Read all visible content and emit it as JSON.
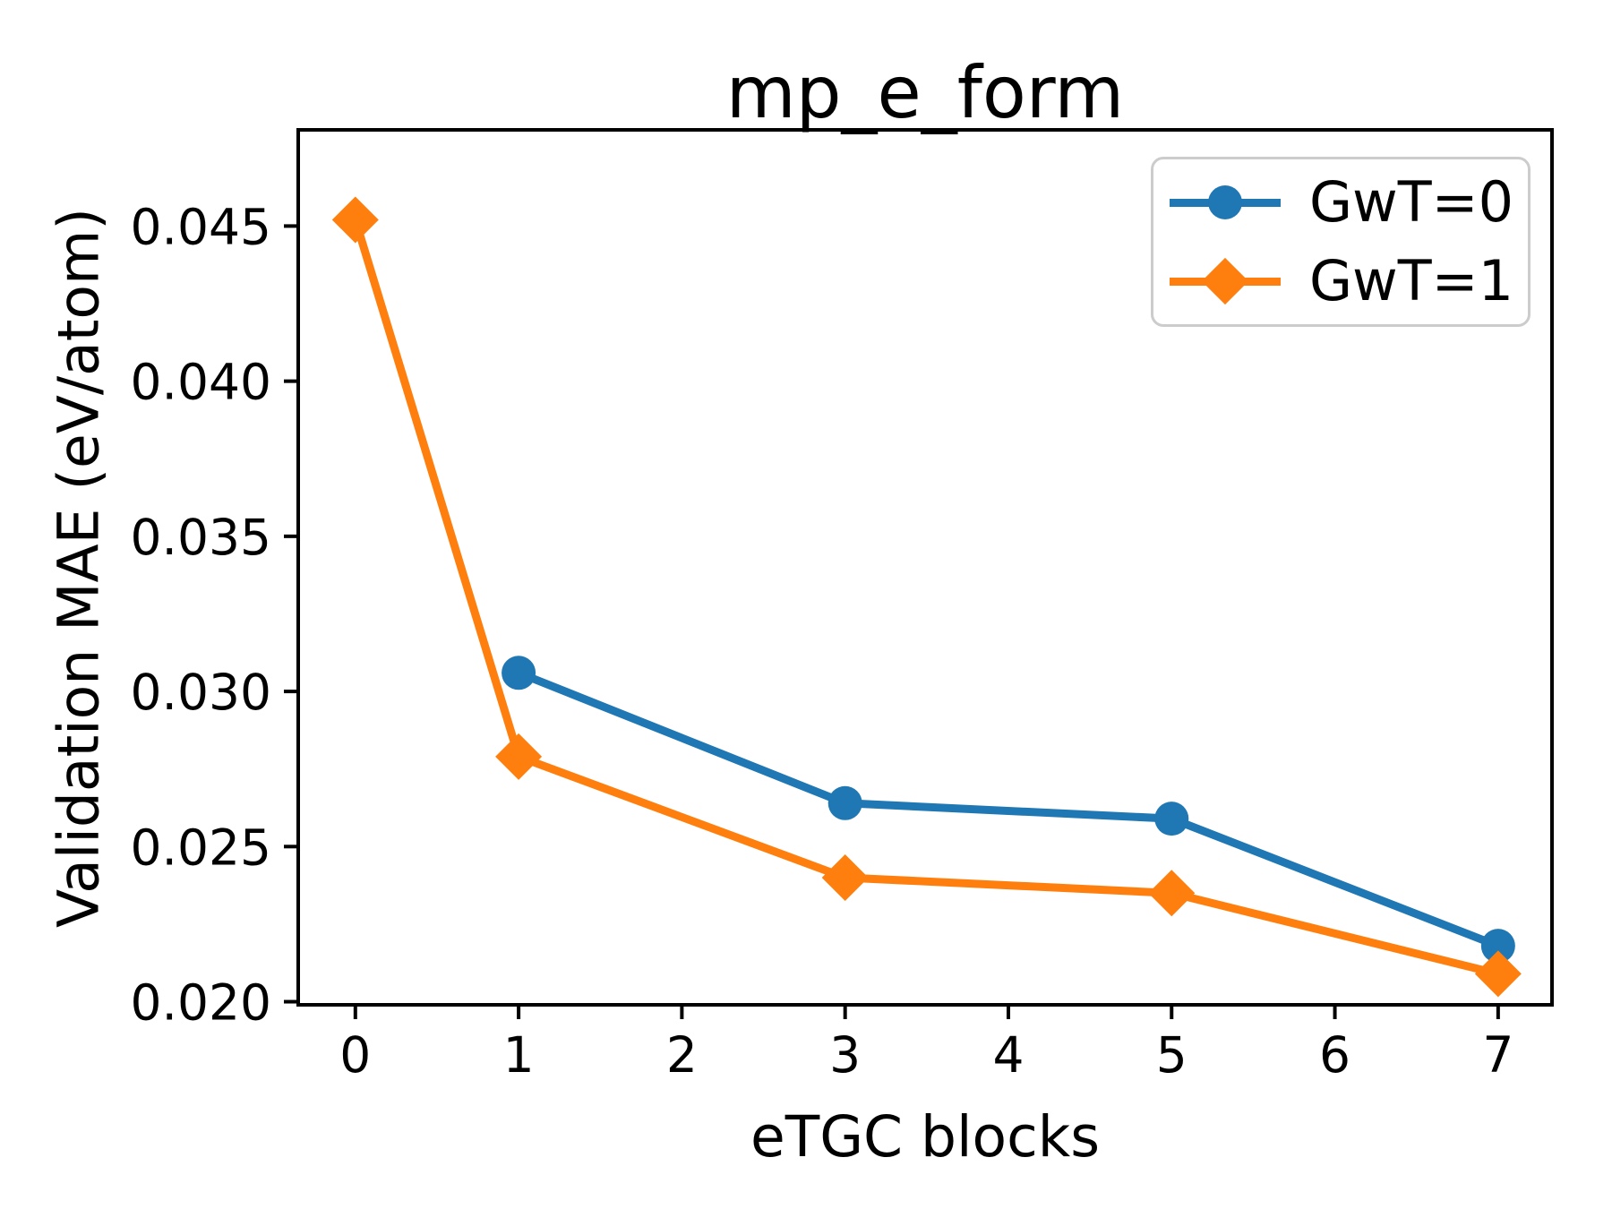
{
  "figure": {
    "background": "#ffffff",
    "axis_color": "#000000",
    "text_color": "#000000",
    "legend_border_color": "#cccccc"
  },
  "chart_data": {
    "type": "line",
    "title": "mp_e_form",
    "xlabel": "eTGC blocks",
    "ylabel": "Validation MAE (eV/atom)",
    "xlim": [
      -0.35,
      7.33
    ],
    "ylim": [
      0.0199,
      0.0481
    ],
    "grid": false,
    "legend_position": "upper right",
    "xticks": [
      0,
      1,
      2,
      3,
      4,
      5,
      6,
      7
    ],
    "xtick_labels": [
      "0",
      "1",
      "2",
      "3",
      "4",
      "5",
      "6",
      "7"
    ],
    "yticks": [
      0.02,
      0.025,
      0.03,
      0.035,
      0.04,
      0.045
    ],
    "ytick_labels": [
      "0.020",
      "0.025",
      "0.030",
      "0.035",
      "0.040",
      "0.045"
    ],
    "series": [
      {
        "name": "GwT=0",
        "color": "#1f77b4",
        "marker": "circle",
        "x": [
          1,
          3,
          5,
          7
        ],
        "y": [
          0.0306,
          0.0264,
          0.0259,
          0.0218
        ]
      },
      {
        "name": "GwT=1",
        "color": "#ff7f0e",
        "marker": "diamond",
        "x": [
          0,
          1,
          3,
          5,
          7
        ],
        "y": [
          0.0452,
          0.0279,
          0.024,
          0.0235,
          0.0209
        ]
      }
    ]
  }
}
